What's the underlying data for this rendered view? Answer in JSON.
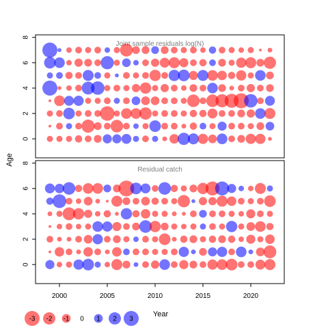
{
  "colors": {
    "positive": "#0000ff",
    "negative": "#ff0000",
    "frame": "#000000",
    "panel_title": "#7f7f7f"
  },
  "chart_data": {
    "type": "scatter",
    "encoding": "bubble",
    "xlabel": "Year",
    "ylabel": "Age",
    "xticks": [
      2000,
      2005,
      2010,
      2015,
      2020
    ],
    "xlim": [
      1997.5,
      2023.5
    ],
    "ylim": [
      -1.5,
      8.2
    ],
    "yticks": [
      0,
      2,
      4,
      6,
      8
    ],
    "years": [
      1999,
      2000,
      2001,
      2002,
      2003,
      2004,
      2005,
      2006,
      2007,
      2008,
      2009,
      2010,
      2011,
      2012,
      2013,
      2014,
      2015,
      2016,
      2017,
      2018,
      2019,
      2020,
      2021,
      2022
    ],
    "ages": [
      0,
      1,
      2,
      3,
      4,
      5,
      6,
      7
    ],
    "panels": [
      {
        "title": "Joint sample residuals log(N)",
        "rows": {
          "7": [
            3.0,
            0.2,
            -0.4,
            -0.6,
            -0.5,
            -0.6,
            0.4,
            -0.5,
            -2.2,
            -0.8,
            -0.8,
            0.8,
            -0.8,
            -0.6,
            -0.5,
            -0.6,
            -0.4,
            0.7,
            -0.6,
            -0.5,
            -0.4,
            -0.5,
            -0.1,
            -0.3
          ],
          "6": [
            1.8,
            1.5,
            -0.4,
            -0.9,
            -0.8,
            -0.6,
            2.3,
            -0.5,
            1.0,
            0.4,
            -0.6,
            -0.9,
            -1.3,
            -1.6,
            -1.1,
            -0.6,
            -0.7,
            0.6,
            -0.8,
            -0.5,
            -1.4,
            -1.6,
            -0.8,
            -2.0
          ],
          "5": [
            0.5,
            0.6,
            -0.7,
            -0.6,
            1.6,
            0.6,
            -0.5,
            0.2,
            -0.6,
            -0.5,
            -0.6,
            -1.7,
            -0.6,
            1.7,
            1.8,
            -1.1,
            1.6,
            -1.5,
            -1.2,
            -0.7,
            -1.4,
            -0.5,
            1.5,
            -0.8
          ],
          "4": [
            3.0,
            -0.2,
            -0.4,
            -0.6,
            2.2,
            2.4,
            -0.5,
            -0.6,
            -0.5,
            -0.9,
            -1.7,
            -0.5,
            -0.9,
            -0.6,
            -0.4,
            -0.8,
            -0.6,
            1.5,
            -0.8,
            -0.3,
            -0.6,
            -0.9,
            -0.6,
            -0.8
          ],
          "3": [
            -0.1,
            -1.5,
            1.3,
            1.4,
            -0.5,
            -0.5,
            -0.6,
            0.5,
            -0.6,
            1.0,
            -1.0,
            -1.0,
            -0.6,
            -0.6,
            -0.5,
            -2.1,
            -0.6,
            -2.1,
            -2.3,
            -2.6,
            -3.0,
            2.4,
            -0.6,
            1.3
          ],
          "2": [
            -0.5,
            -0.6,
            1.8,
            -0.5,
            -0.6,
            -0.6,
            -2.8,
            -0.5,
            -1.5,
            -1.5,
            -2.0,
            -0.5,
            -0.6,
            -0.6,
            -0.5,
            -0.7,
            -0.7,
            -1.3,
            -0.6,
            -0.6,
            -0.8,
            -0.9,
            1.5,
            -1.6
          ],
          "1": [
            -0.1,
            -0.6,
            0.5,
            -0.6,
            -2.3,
            -0.8,
            -0.6,
            -2.1,
            -0.6,
            0.4,
            -0.5,
            1.8,
            -0.6,
            -0.6,
            -0.3,
            -0.7,
            0.6,
            -0.5,
            1.1,
            -0.6,
            -0.6,
            -0.5,
            -0.8,
            1.0
          ],
          "0": [
            -0.5,
            -0.5,
            -0.5,
            -0.7,
            -0.6,
            -0.8,
            1.1,
            1.1,
            1.3,
            0.5,
            -0.6,
            0.5,
            -0.3,
            -1.2,
            2.0,
            1.6,
            -1.4,
            -1.0,
            1.5,
            -0.6,
            -0.8,
            -1.4,
            -1.4,
            -0.2
          ]
        }
      },
      {
        "title": "Residual catch",
        "rows": {
          "7": [],
          "6": [
            1.3,
            1.2,
            2.1,
            -0.7,
            -1.5,
            -1.5,
            0.8,
            -0.8,
            -3.3,
            1.8,
            1.3,
            -0.6,
            2.1,
            -0.7,
            -0.5,
            -0.8,
            -1.7,
            -2.6,
            2.6,
            1.1,
            0.4,
            -0.4,
            -1.6,
            0.5
          ],
          "5": [
            0.7,
            2.5,
            -0.6,
            -0.4,
            -1.0,
            -0.3,
            -0.1,
            -1.6,
            -0.8,
            -0.6,
            -1.0,
            -0.7,
            -0.6,
            -0.5,
            -2.0,
            0.2,
            -0.9,
            -0.9,
            -1.6,
            -1.2,
            -0.6,
            -0.5,
            -0.6,
            -1.8
          ],
          "4": [
            -0.3,
            -0.5,
            -2.2,
            -1.7,
            -0.9,
            -0.4,
            -0.7,
            -0.2,
            1.7,
            -0.7,
            -1.2,
            -0.5,
            -0.5,
            -0.3,
            -0.2,
            -0.6,
            0.8,
            -0.6,
            -0.6,
            -0.5,
            -0.4,
            -1.1,
            -0.6,
            -0.5
          ],
          "3": [
            -0.1,
            -0.4,
            -0.6,
            -0.4,
            -0.5,
            1.5,
            1.4,
            -1.1,
            -0.6,
            -0.8,
            2.1,
            -1.7,
            -0.8,
            -0.5,
            -0.4,
            -0.5,
            0.5,
            -0.6,
            -0.5,
            1.7,
            -0.5,
            -1.0,
            -1.5,
            -0.7
          ],
          "2": [
            -0.6,
            -0.3,
            -0.3,
            -0.6,
            -1.0,
            1.4,
            -0.6,
            -0.8,
            -0.5,
            0.4,
            -0.6,
            -0.5,
            -1.8,
            -0.3,
            -0.7,
            -0.8,
            -0.5,
            -0.7,
            -0.8,
            -0.7,
            -0.4,
            -1.1,
            -0.5,
            -1.2
          ],
          "1": [
            -0.1,
            -1.2,
            -0.6,
            -0.3,
            -1.2,
            -0.6,
            -0.3,
            -1.2,
            0.6,
            -0.6,
            -0.6,
            -0.5,
            -0.5,
            -0.6,
            1.4,
            0.3,
            -0.8,
            1.1,
            1.4,
            -0.6,
            1.5,
            0.3,
            -1.0,
            -2.2
          ],
          "0": [
            1.1,
            -0.4,
            -0.5,
            1.4,
            1.8,
            0.5,
            -0.4,
            -1.6,
            -0.8,
            0.3,
            -0.6,
            -0.9,
            1.5,
            -0.6,
            -1.1,
            -0.8,
            -0.6,
            -1.4,
            -1.5,
            -1.8,
            -0.6,
            -0.6,
            -1.3,
            -1.6
          ]
        }
      }
    ],
    "legend": {
      "values": [
        -3,
        -2,
        -1,
        0,
        1,
        2,
        3
      ],
      "labels": [
        "-3",
        "-2",
        "-1",
        "0",
        "1",
        "2",
        "3"
      ]
    }
  }
}
